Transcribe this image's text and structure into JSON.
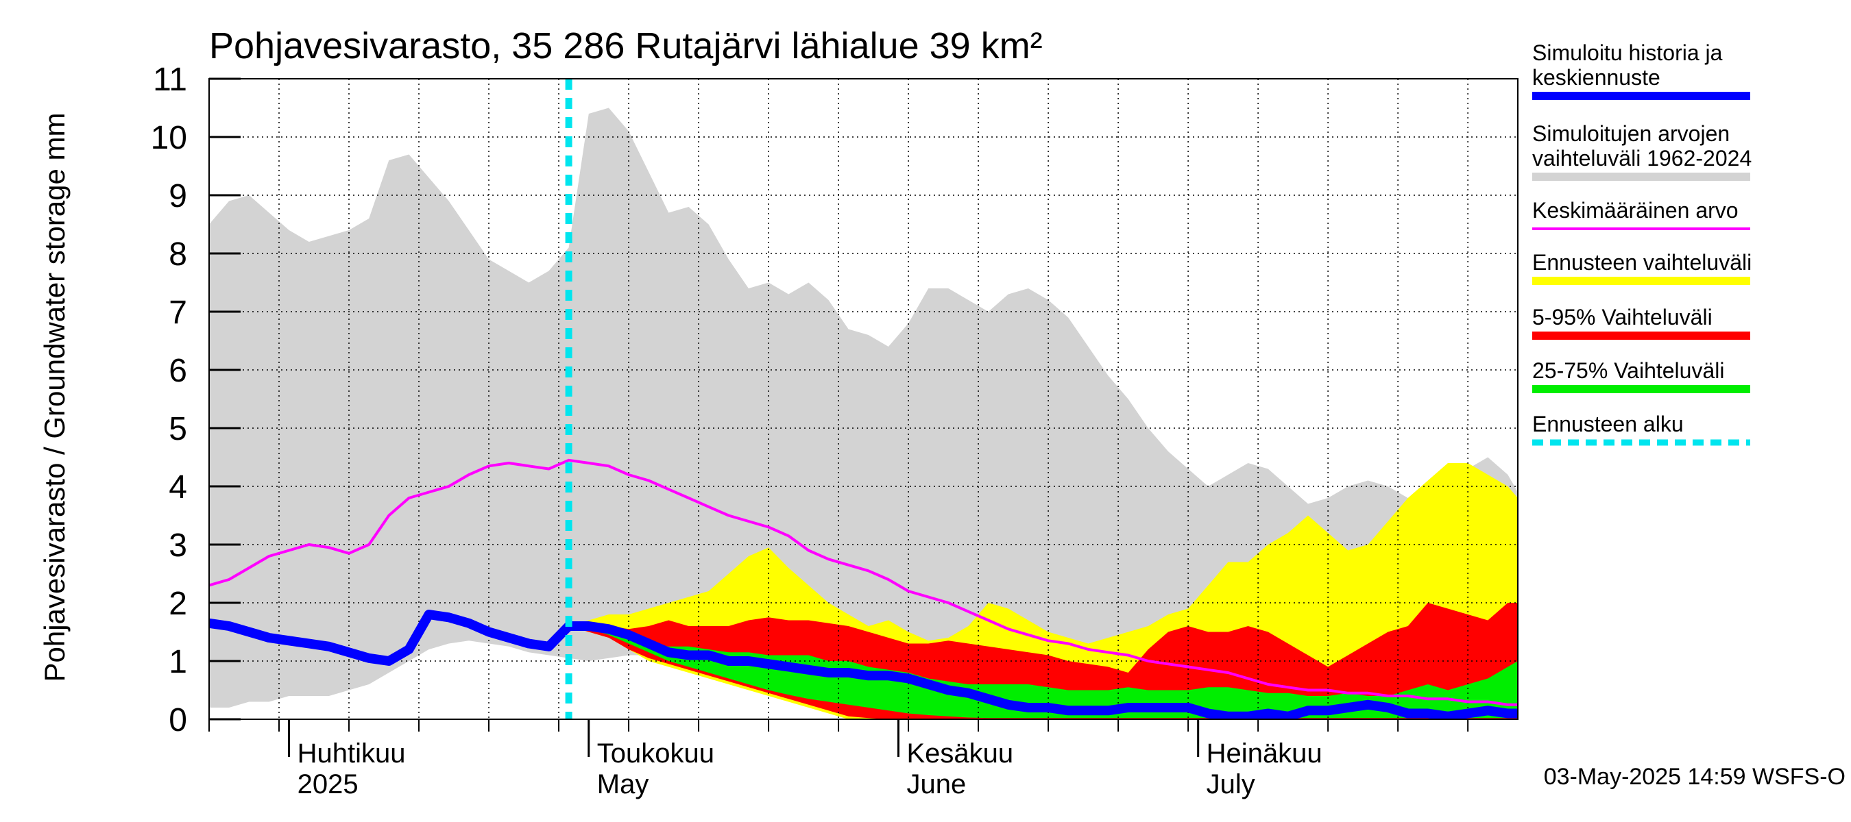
{
  "chart_data": {
    "type": "area",
    "title": "Pohjavesivarasto, 35 286 Rutajärvi lähialue 39 km²",
    "ylabel": "Pohjavesivarasto / Groundwater storage   mm",
    "xlabel": "",
    "ylim": [
      0,
      11
    ],
    "yticks": [
      0,
      1,
      2,
      3,
      4,
      5,
      6,
      7,
      8,
      9,
      10,
      11
    ],
    "xlim": [
      "2025-03-24",
      "2025-08-02"
    ],
    "grid": true,
    "x_labels": [
      {
        "line1": "Huhtikuu",
        "line2": "2025",
        "date": "2025-04-01"
      },
      {
        "line1": "Toukokuu",
        "line2": "May",
        "date": "2025-05-01"
      },
      {
        "line1": "Kesäkuu",
        "line2": "June",
        "date": "2025-06-01"
      },
      {
        "line1": "Heinäkuu",
        "line2": "July",
        "date": "2025-07-01"
      }
    ],
    "forecast_start": "2025-04-29",
    "legend_position": "right",
    "footer": "03-May-2025 14:59 WSFS-O",
    "series": [
      {
        "name": "Simuloitujen arvojen vaihteluväli 1962-2024",
        "legend_line1": "Simuloitujen arvojen",
        "legend_line2": "vaihteluväli 1962-2024",
        "kind": "band",
        "color": "#d3d3d3",
        "x": [
          "2025-03-24",
          "2025-03-26",
          "2025-03-28",
          "2025-03-30",
          "2025-04-01",
          "2025-04-03",
          "2025-04-05",
          "2025-04-07",
          "2025-04-09",
          "2025-04-11",
          "2025-04-13",
          "2025-04-15",
          "2025-04-17",
          "2025-04-19",
          "2025-04-21",
          "2025-04-23",
          "2025-04-25",
          "2025-04-27",
          "2025-04-29",
          "2025-05-01",
          "2025-05-03",
          "2025-05-05",
          "2025-05-07",
          "2025-05-09",
          "2025-05-11",
          "2025-05-13",
          "2025-05-15",
          "2025-05-17",
          "2025-05-19",
          "2025-05-21",
          "2025-05-23",
          "2025-05-25",
          "2025-05-27",
          "2025-05-29",
          "2025-05-31",
          "2025-06-02",
          "2025-06-04",
          "2025-06-06",
          "2025-06-08",
          "2025-06-10",
          "2025-06-12",
          "2025-06-14",
          "2025-06-16",
          "2025-06-18",
          "2025-06-20",
          "2025-06-22",
          "2025-06-24",
          "2025-06-26",
          "2025-06-28",
          "2025-06-30",
          "2025-07-02",
          "2025-07-04",
          "2025-07-06",
          "2025-07-08",
          "2025-07-10",
          "2025-07-12",
          "2025-07-14",
          "2025-07-16",
          "2025-07-18",
          "2025-07-20",
          "2025-07-22",
          "2025-07-24",
          "2025-07-26",
          "2025-07-28",
          "2025-07-30",
          "2025-08-01",
          "2025-08-02"
        ],
        "low": [
          0.2,
          0.2,
          0.3,
          0.3,
          0.4,
          0.4,
          0.4,
          0.5,
          0.6,
          0.8,
          1.0,
          1.2,
          1.3,
          1.35,
          1.3,
          1.25,
          1.15,
          1.1,
          1.05,
          1.0,
          1.05,
          1.1,
          1.1,
          1.0,
          0.9,
          0.8,
          0.7,
          0.6,
          0.5,
          0.4,
          0.3,
          0.25,
          0.2,
          0.15,
          0.1,
          0.08,
          0.07,
          0.06,
          0.05,
          0.05,
          0.05,
          0.05,
          0.05,
          0.05,
          0.05,
          0.05,
          0.05,
          0.05,
          0.05,
          0.05,
          0.05,
          0.05,
          0.05,
          0.05,
          0.05,
          0.05,
          0.05,
          0.05,
          0.05,
          0.05,
          0.05,
          0.05,
          0.05,
          0.05,
          0.05,
          0.05,
          0.05
        ],
        "high": [
          8.5,
          8.9,
          9.0,
          8.7,
          8.4,
          8.2,
          8.3,
          8.4,
          8.6,
          9.6,
          9.7,
          9.3,
          8.9,
          8.4,
          7.9,
          7.7,
          7.5,
          7.7,
          8.1,
          10.4,
          10.5,
          10.1,
          9.4,
          8.7,
          8.8,
          8.5,
          7.9,
          7.4,
          7.5,
          7.3,
          7.5,
          7.2,
          6.7,
          6.6,
          6.4,
          6.8,
          7.4,
          7.4,
          7.2,
          7.0,
          7.3,
          7.4,
          7.2,
          6.9,
          6.4,
          5.9,
          5.5,
          5.0,
          4.6,
          4.3,
          4.0,
          4.2,
          4.4,
          4.3,
          4.0,
          3.7,
          3.8,
          4.0,
          4.1,
          4.0,
          3.8,
          3.6,
          4.1,
          4.3,
          4.5,
          4.2,
          3.9
        ]
      },
      {
        "name": "Ennusteen vaihteluväli",
        "kind": "band",
        "color": "#ffff00",
        "x": [
          "2025-04-29",
          "2025-05-01",
          "2025-05-03",
          "2025-05-05",
          "2025-05-07",
          "2025-05-09",
          "2025-05-11",
          "2025-05-13",
          "2025-05-15",
          "2025-05-17",
          "2025-05-19",
          "2025-05-21",
          "2025-05-23",
          "2025-05-25",
          "2025-05-27",
          "2025-05-29",
          "2025-05-31",
          "2025-06-02",
          "2025-06-04",
          "2025-06-06",
          "2025-06-08",
          "2025-06-10",
          "2025-06-12",
          "2025-06-14",
          "2025-06-16",
          "2025-06-18",
          "2025-06-20",
          "2025-06-22",
          "2025-06-24",
          "2025-06-26",
          "2025-06-28",
          "2025-06-30",
          "2025-07-02",
          "2025-07-04",
          "2025-07-06",
          "2025-07-08",
          "2025-07-10",
          "2025-07-12",
          "2025-07-14",
          "2025-07-16",
          "2025-07-18",
          "2025-07-20",
          "2025-07-22",
          "2025-07-24",
          "2025-07-26",
          "2025-07-28",
          "2025-07-30",
          "2025-08-01",
          "2025-08-02"
        ],
        "low": [
          1.6,
          1.5,
          1.4,
          1.2,
          1.0,
          0.9,
          0.8,
          0.7,
          0.6,
          0.5,
          0.4,
          0.3,
          0.2,
          0.1,
          0.0,
          0.0,
          0.0,
          0.0,
          0.0,
          0.0,
          0.0,
          0.0,
          0.0,
          0.0,
          0.0,
          0.0,
          0.0,
          0.0,
          0.0,
          0.0,
          0.0,
          0.0,
          0.0,
          0.0,
          0.0,
          0.0,
          0.0,
          0.0,
          0.0,
          0.0,
          0.0,
          0.0,
          0.0,
          0.0,
          0.0,
          0.0,
          0.0,
          0.0,
          0.0
        ],
        "high": [
          1.6,
          1.7,
          1.8,
          1.8,
          1.9,
          2.0,
          2.1,
          2.2,
          2.5,
          2.8,
          2.95,
          2.6,
          2.3,
          2.0,
          1.8,
          1.6,
          1.7,
          1.5,
          1.35,
          1.4,
          1.6,
          2.0,
          1.9,
          1.7,
          1.5,
          1.4,
          1.3,
          1.4,
          1.5,
          1.6,
          1.8,
          1.9,
          2.3,
          2.7,
          2.7,
          3.0,
          3.2,
          3.5,
          3.2,
          2.9,
          3.0,
          3.4,
          3.8,
          4.1,
          4.4,
          4.4,
          4.2,
          4.0,
          3.8
        ]
      },
      {
        "name": "5-95% Vaihteluväli",
        "kind": "band",
        "color": "#ff0000",
        "x": [
          "2025-04-29",
          "2025-05-01",
          "2025-05-03",
          "2025-05-05",
          "2025-05-07",
          "2025-05-09",
          "2025-05-11",
          "2025-05-13",
          "2025-05-15",
          "2025-05-17",
          "2025-05-19",
          "2025-05-21",
          "2025-05-23",
          "2025-05-25",
          "2025-05-27",
          "2025-05-29",
          "2025-05-31",
          "2025-06-02",
          "2025-06-04",
          "2025-06-06",
          "2025-06-08",
          "2025-06-10",
          "2025-06-12",
          "2025-06-14",
          "2025-06-16",
          "2025-06-18",
          "2025-06-20",
          "2025-06-22",
          "2025-06-24",
          "2025-06-26",
          "2025-06-28",
          "2025-06-30",
          "2025-07-02",
          "2025-07-04",
          "2025-07-06",
          "2025-07-08",
          "2025-07-10",
          "2025-07-12",
          "2025-07-14",
          "2025-07-16",
          "2025-07-18",
          "2025-07-20",
          "2025-07-22",
          "2025-07-24",
          "2025-07-26",
          "2025-07-28",
          "2025-07-30",
          "2025-08-01",
          "2025-08-02"
        ],
        "low": [
          1.6,
          1.5,
          1.4,
          1.2,
          1.05,
          0.95,
          0.85,
          0.75,
          0.65,
          0.55,
          0.45,
          0.35,
          0.25,
          0.15,
          0.05,
          0.02,
          0.0,
          0.0,
          0.0,
          0.0,
          0.0,
          0.0,
          0.0,
          0.0,
          0.0,
          0.0,
          0.0,
          0.0,
          0.0,
          0.0,
          0.0,
          0.0,
          0.0,
          0.0,
          0.0,
          0.0,
          0.0,
          0.0,
          0.0,
          0.0,
          0.0,
          0.0,
          0.0,
          0.0,
          0.0,
          0.0,
          0.0,
          0.0,
          0.0
        ],
        "high": [
          1.6,
          1.65,
          1.6,
          1.55,
          1.6,
          1.7,
          1.6,
          1.6,
          1.6,
          1.7,
          1.75,
          1.7,
          1.7,
          1.65,
          1.6,
          1.5,
          1.4,
          1.3,
          1.3,
          1.35,
          1.3,
          1.25,
          1.2,
          1.15,
          1.1,
          1.0,
          0.95,
          0.9,
          0.8,
          1.2,
          1.5,
          1.6,
          1.5,
          1.5,
          1.6,
          1.5,
          1.3,
          1.1,
          0.9,
          1.1,
          1.3,
          1.5,
          1.6,
          2.0,
          1.9,
          1.8,
          1.7,
          2.0,
          2.0
        ]
      },
      {
        "name": "25-75% Vaihteluväli",
        "kind": "band",
        "color": "#00ee00",
        "x": [
          "2025-04-29",
          "2025-05-01",
          "2025-05-03",
          "2025-05-05",
          "2025-05-07",
          "2025-05-09",
          "2025-05-11",
          "2025-05-13",
          "2025-05-15",
          "2025-05-17",
          "2025-05-19",
          "2025-05-21",
          "2025-05-23",
          "2025-05-25",
          "2025-05-27",
          "2025-05-29",
          "2025-05-31",
          "2025-06-02",
          "2025-06-04",
          "2025-06-06",
          "2025-06-08",
          "2025-06-10",
          "2025-06-12",
          "2025-06-14",
          "2025-06-16",
          "2025-06-18",
          "2025-06-20",
          "2025-06-22",
          "2025-06-24",
          "2025-06-26",
          "2025-06-28",
          "2025-06-30",
          "2025-07-02",
          "2025-07-04",
          "2025-07-06",
          "2025-07-08",
          "2025-07-10",
          "2025-07-12",
          "2025-07-14",
          "2025-07-16",
          "2025-07-18",
          "2025-07-20",
          "2025-07-22",
          "2025-07-24",
          "2025-07-26",
          "2025-07-28",
          "2025-07-30",
          "2025-08-01",
          "2025-08-02"
        ],
        "low": [
          1.6,
          1.55,
          1.45,
          1.3,
          1.15,
          1.0,
          0.9,
          0.8,
          0.7,
          0.6,
          0.5,
          0.42,
          0.35,
          0.3,
          0.25,
          0.2,
          0.15,
          0.1,
          0.07,
          0.05,
          0.03,
          0.02,
          0.02,
          0.02,
          0.02,
          0.02,
          0.02,
          0.02,
          0.02,
          0.02,
          0.02,
          0.02,
          0.02,
          0.02,
          0.02,
          0.02,
          0.02,
          0.02,
          0.02,
          0.02,
          0.02,
          0.02,
          0.02,
          0.02,
          0.02,
          0.02,
          0.02,
          0.02,
          0.02
        ],
        "high": [
          1.6,
          1.6,
          1.5,
          1.4,
          1.3,
          1.25,
          1.25,
          1.2,
          1.15,
          1.15,
          1.1,
          1.1,
          1.1,
          1.0,
          1.0,
          0.9,
          0.85,
          0.8,
          0.7,
          0.65,
          0.6,
          0.6,
          0.6,
          0.6,
          0.55,
          0.5,
          0.5,
          0.5,
          0.55,
          0.5,
          0.5,
          0.5,
          0.55,
          0.55,
          0.5,
          0.45,
          0.45,
          0.4,
          0.4,
          0.45,
          0.4,
          0.4,
          0.5,
          0.6,
          0.5,
          0.6,
          0.7,
          0.9,
          1.0
        ]
      },
      {
        "name": "Keskimääräinen arvo",
        "kind": "line",
        "color": "#ff00ff",
        "x": [
          "2025-03-24",
          "2025-03-26",
          "2025-03-28",
          "2025-03-30",
          "2025-04-01",
          "2025-04-03",
          "2025-04-05",
          "2025-04-07",
          "2025-04-09",
          "2025-04-11",
          "2025-04-13",
          "2025-04-15",
          "2025-04-17",
          "2025-04-19",
          "2025-04-21",
          "2025-04-23",
          "2025-04-25",
          "2025-04-27",
          "2025-04-29",
          "2025-05-01",
          "2025-05-03",
          "2025-05-05",
          "2025-05-07",
          "2025-05-09",
          "2025-05-11",
          "2025-05-13",
          "2025-05-15",
          "2025-05-17",
          "2025-05-19",
          "2025-05-21",
          "2025-05-23",
          "2025-05-25",
          "2025-05-27",
          "2025-05-29",
          "2025-05-31",
          "2025-06-02",
          "2025-06-04",
          "2025-06-06",
          "2025-06-08",
          "2025-06-10",
          "2025-06-12",
          "2025-06-14",
          "2025-06-16",
          "2025-06-18",
          "2025-06-20",
          "2025-06-22",
          "2025-06-24",
          "2025-06-26",
          "2025-06-28",
          "2025-06-30",
          "2025-07-02",
          "2025-07-04",
          "2025-07-06",
          "2025-07-08",
          "2025-07-10",
          "2025-07-12",
          "2025-07-14",
          "2025-07-16",
          "2025-07-18",
          "2025-07-20",
          "2025-07-22",
          "2025-07-24",
          "2025-07-26",
          "2025-07-28",
          "2025-07-30",
          "2025-08-01",
          "2025-08-02"
        ],
        "y": [
          2.3,
          2.4,
          2.6,
          2.8,
          2.9,
          3.0,
          2.95,
          2.85,
          3.0,
          3.5,
          3.8,
          3.9,
          4.0,
          4.2,
          4.35,
          4.4,
          4.35,
          4.3,
          4.45,
          4.4,
          4.35,
          4.2,
          4.1,
          3.95,
          3.8,
          3.65,
          3.5,
          3.4,
          3.3,
          3.15,
          2.9,
          2.75,
          2.65,
          2.55,
          2.4,
          2.2,
          2.1,
          2.0,
          1.85,
          1.7,
          1.55,
          1.45,
          1.35,
          1.3,
          1.2,
          1.15,
          1.1,
          1.0,
          0.95,
          0.9,
          0.85,
          0.8,
          0.7,
          0.6,
          0.55,
          0.5,
          0.5,
          0.45,
          0.45,
          0.4,
          0.4,
          0.35,
          0.35,
          0.3,
          0.3,
          0.25,
          0.25
        ]
      },
      {
        "name": "Simuloitu historia ja keskiennuste",
        "legend_line1": "Simuloitu historia ja",
        "legend_line2": "keskiennuste",
        "kind": "line",
        "color": "#0000ff",
        "x": [
          "2025-03-24",
          "2025-03-26",
          "2025-03-28",
          "2025-03-30",
          "2025-04-01",
          "2025-04-03",
          "2025-04-05",
          "2025-04-07",
          "2025-04-09",
          "2025-04-11",
          "2025-04-13",
          "2025-04-15",
          "2025-04-17",
          "2025-04-19",
          "2025-04-21",
          "2025-04-23",
          "2025-04-25",
          "2025-04-27",
          "2025-04-29",
          "2025-05-01",
          "2025-05-03",
          "2025-05-05",
          "2025-05-07",
          "2025-05-09",
          "2025-05-11",
          "2025-05-13",
          "2025-05-15",
          "2025-05-17",
          "2025-05-19",
          "2025-05-21",
          "2025-05-23",
          "2025-05-25",
          "2025-05-27",
          "2025-05-29",
          "2025-05-31",
          "2025-06-02",
          "2025-06-04",
          "2025-06-06",
          "2025-06-08",
          "2025-06-10",
          "2025-06-12",
          "2025-06-14",
          "2025-06-16",
          "2025-06-18",
          "2025-06-20",
          "2025-06-22",
          "2025-06-24",
          "2025-06-26",
          "2025-06-28",
          "2025-06-30",
          "2025-07-02",
          "2025-07-04",
          "2025-07-06",
          "2025-07-08",
          "2025-07-10",
          "2025-07-12",
          "2025-07-14",
          "2025-07-16",
          "2025-07-18",
          "2025-07-20",
          "2025-07-22",
          "2025-07-24",
          "2025-07-26",
          "2025-07-28",
          "2025-07-30",
          "2025-08-01",
          "2025-08-02"
        ],
        "y": [
          1.65,
          1.6,
          1.5,
          1.4,
          1.35,
          1.3,
          1.25,
          1.15,
          1.05,
          1.0,
          1.2,
          1.8,
          1.75,
          1.65,
          1.5,
          1.4,
          1.3,
          1.25,
          1.6,
          1.6,
          1.55,
          1.45,
          1.3,
          1.15,
          1.1,
          1.1,
          1.0,
          1.0,
          0.95,
          0.9,
          0.85,
          0.8,
          0.8,
          0.75,
          0.75,
          0.7,
          0.6,
          0.5,
          0.45,
          0.35,
          0.25,
          0.2,
          0.2,
          0.15,
          0.15,
          0.15,
          0.2,
          0.2,
          0.2,
          0.2,
          0.1,
          0.05,
          0.05,
          0.1,
          0.05,
          0.15,
          0.15,
          0.2,
          0.25,
          0.2,
          0.1,
          0.1,
          0.05,
          0.1,
          0.15,
          0.1,
          0.1
        ]
      },
      {
        "name": "Ennusteen alku",
        "kind": "vline",
        "color": "#00e5ee"
      }
    ]
  }
}
